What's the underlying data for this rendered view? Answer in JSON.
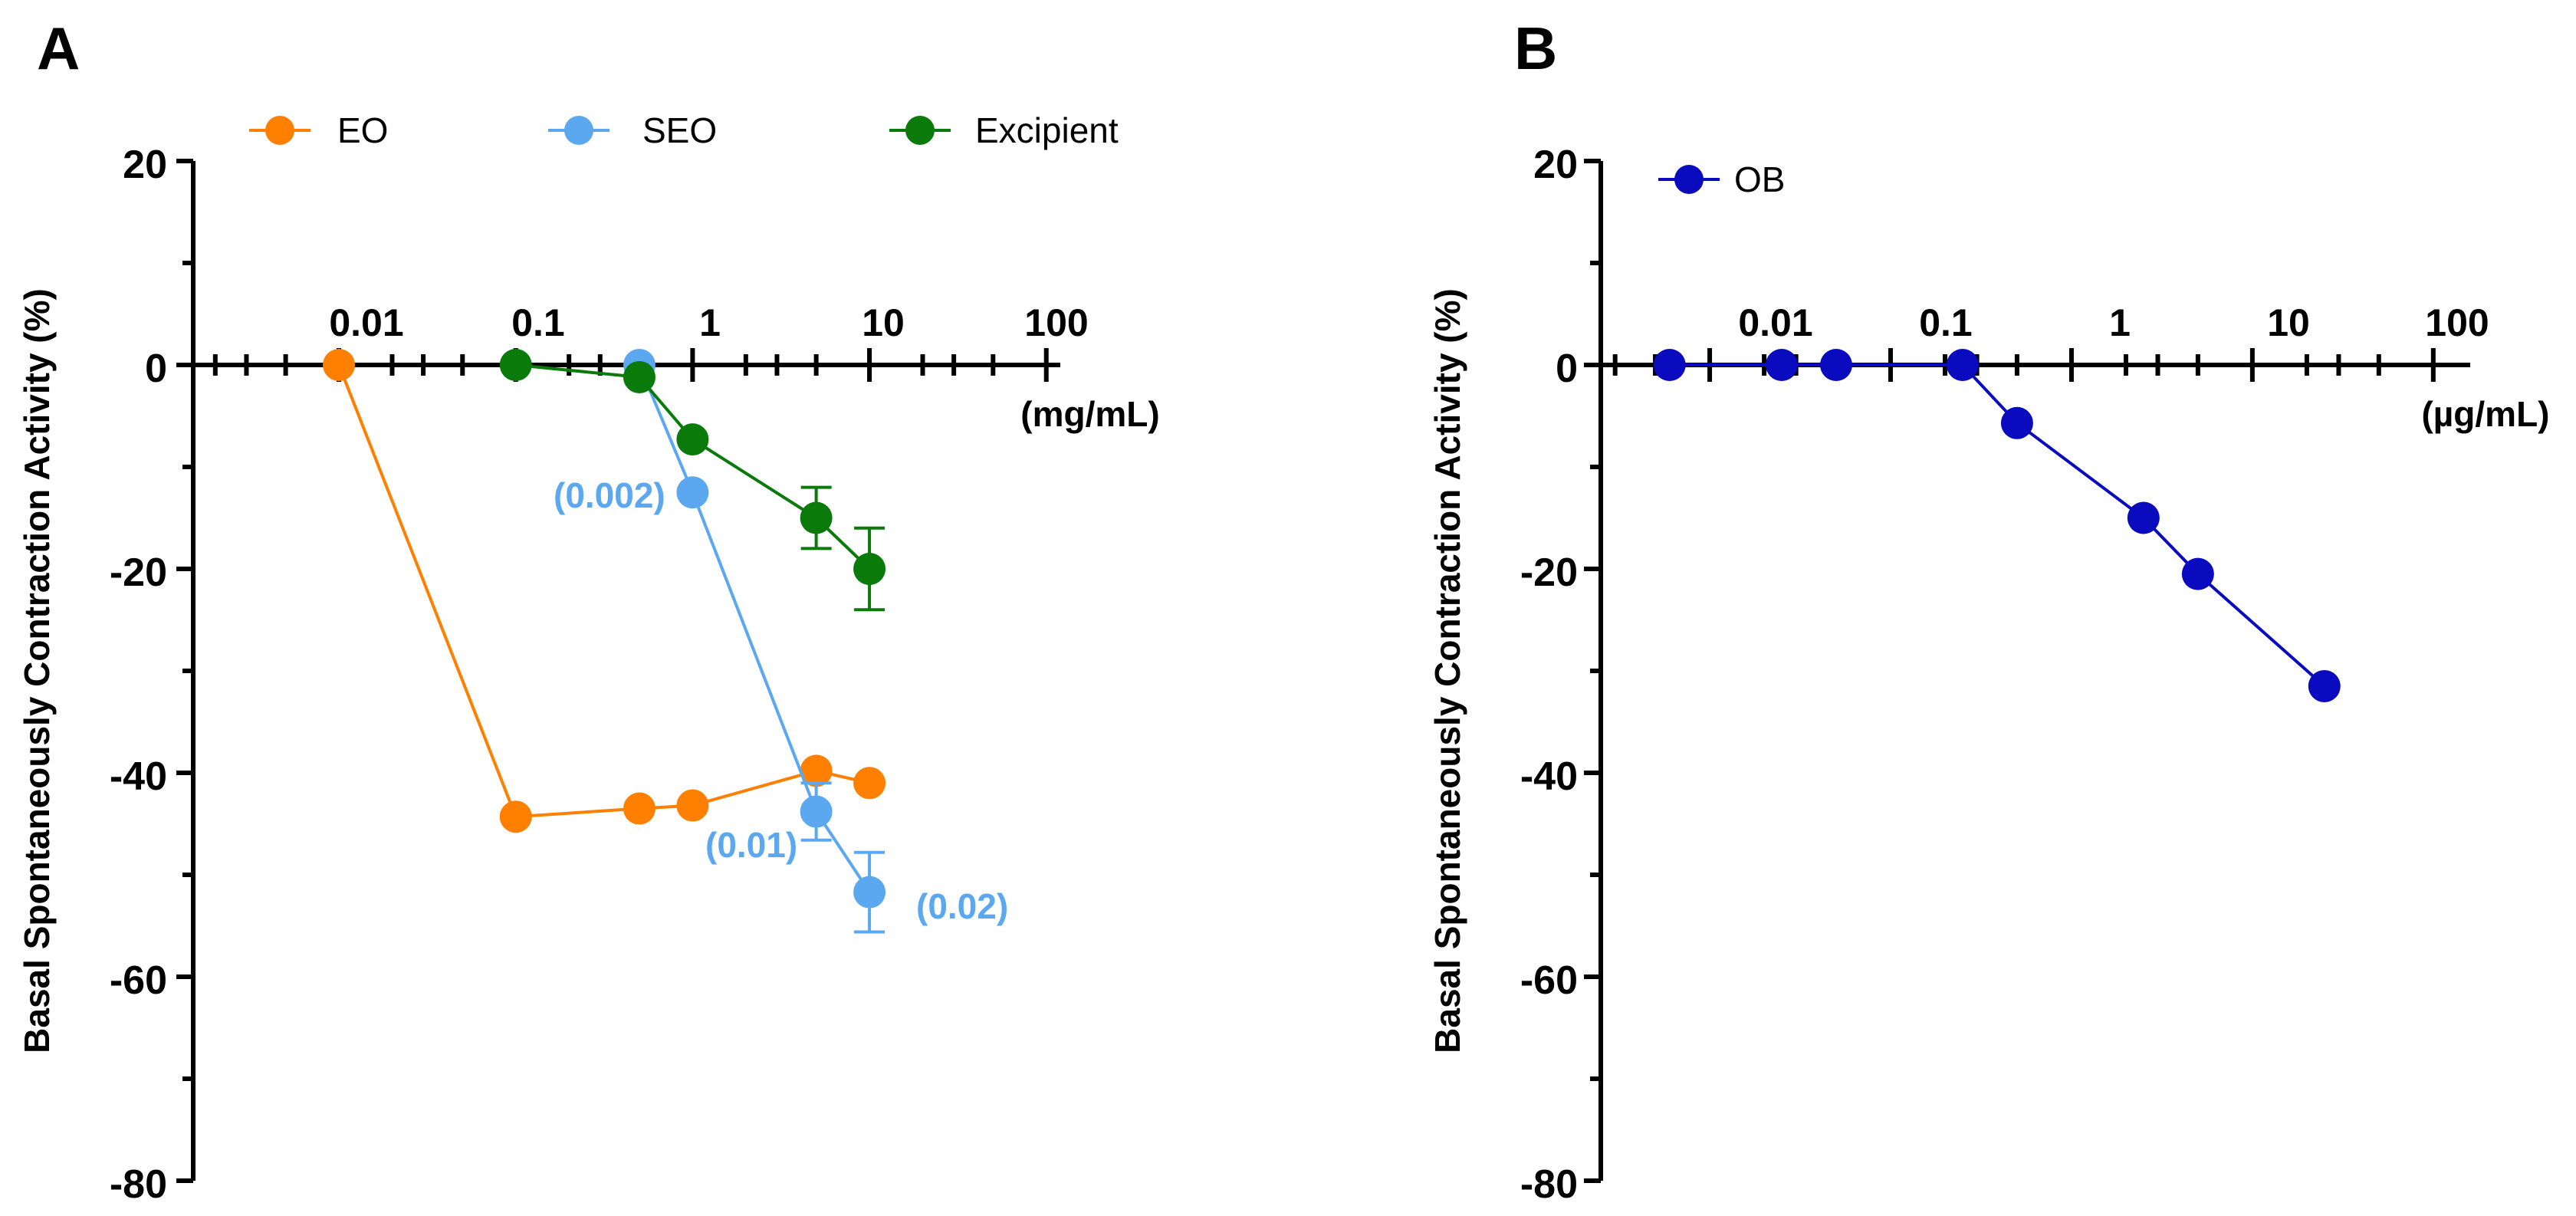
{
  "chart_data": [
    {
      "type": "line",
      "panel": "A",
      "xscale": "log",
      "xlim": [
        0.0015,
        120
      ],
      "ylim": [
        -80,
        20
      ],
      "yticks": [
        20,
        0,
        -20,
        -40,
        -60,
        -80
      ],
      "ytick_labels": [
        "20",
        "0",
        "-20",
        "-40",
        "-60",
        "-80"
      ],
      "xticks": [
        0.01,
        0.1,
        1,
        10,
        100
      ],
      "xtick_labels": [
        "0.01",
        "0.1",
        "1",
        "10",
        "100"
      ],
      "ylabel": "Basal Spontaneously Contraction Activity (%)",
      "xlabel": "(mg/mL)",
      "legend": [
        "EO",
        "SEO",
        "Excipient"
      ],
      "series": [
        {
          "name": "EO",
          "color": "#FF8000",
          "x": [
            0.01,
            0.1,
            0.5,
            1,
            5,
            10
          ],
          "y": [
            0,
            -44.3,
            -43.5,
            -43.2,
            -39.8,
            -41
          ],
          "err": [
            0,
            0,
            0,
            0,
            0,
            0
          ]
        },
        {
          "name": "SEO",
          "color": "#5BA8F0",
          "x": [
            0.5,
            1,
            5,
            10
          ],
          "y": [
            0,
            -12.5,
            -43.8,
            -51.7
          ],
          "err": [
            0,
            0,
            2.8,
            3.9
          ]
        },
        {
          "name": "Excipient",
          "color": "#0A7A0A",
          "x": [
            0.1,
            0.5,
            1,
            5,
            10
          ],
          "y": [
            0,
            -1.2,
            -7.3,
            -15,
            -20
          ],
          "err": [
            0,
            0,
            0,
            3,
            4
          ]
        }
      ],
      "annotations": [
        {
          "text": "(0.002)",
          "color": "#5BA8F0"
        },
        {
          "text": "(0.01)",
          "color": "#5BA8F0"
        },
        {
          "text": "(0.02)",
          "color": "#5BA8F0"
        }
      ]
    },
    {
      "type": "line",
      "panel": "B",
      "xscale": "log",
      "xlim": [
        0.0025,
        160
      ],
      "ylim": [
        -80,
        20
      ],
      "yticks": [
        20,
        0,
        -20,
        -40,
        -60,
        -80
      ],
      "ytick_labels": [
        "20",
        "0",
        "-20",
        "-40",
        "-60",
        "-80"
      ],
      "xticks": [
        0.01,
        0.1,
        1,
        10,
        100
      ],
      "xtick_labels": [
        "0.01",
        "0.1",
        "1",
        "10",
        "100"
      ],
      "ylabel": "Basal Spontaneously Contraction Activity (%)",
      "xlabel": "(µg/mL)",
      "legend": [
        "OB"
      ],
      "series": [
        {
          "name": "OB",
          "color": "#0A0ABE",
          "x": [
            0.006,
            0.025,
            0.05,
            0.25,
            0.5,
            2.5,
            5,
            25
          ],
          "y": [
            0,
            0,
            0,
            0,
            -5.7,
            -15,
            -20.5,
            -31.5
          ],
          "err": [
            0,
            0,
            0,
            0,
            0,
            0,
            0,
            0
          ]
        }
      ]
    }
  ]
}
